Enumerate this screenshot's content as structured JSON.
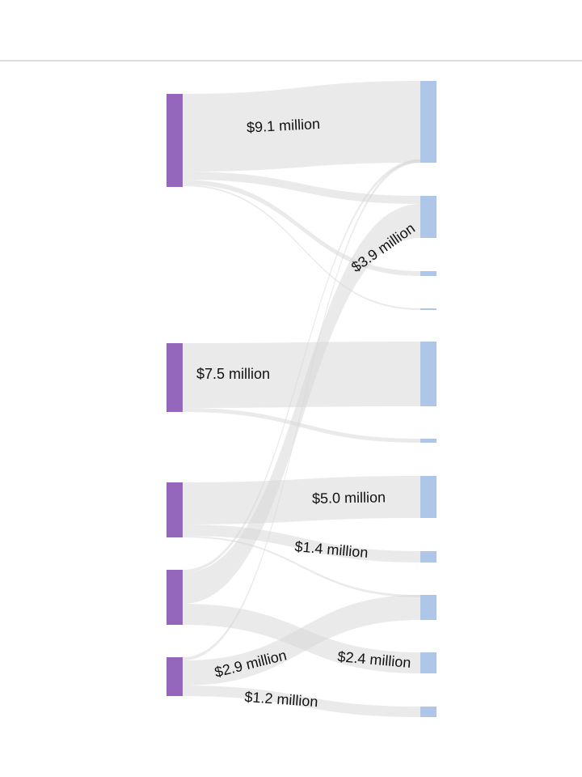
{
  "diagram": {
    "type": "sankey",
    "colors": {
      "source_node": "#9467bd",
      "target_node": "#aec7e8",
      "flow": "#d5d5d5"
    },
    "flow_labels": [
      "$9.1 million",
      "$3.9 million",
      "$7.5 million",
      "$5.0 million",
      "$1.4 million",
      "$2.4 million",
      "$2.9 million",
      "$1.2 million"
    ]
  }
}
